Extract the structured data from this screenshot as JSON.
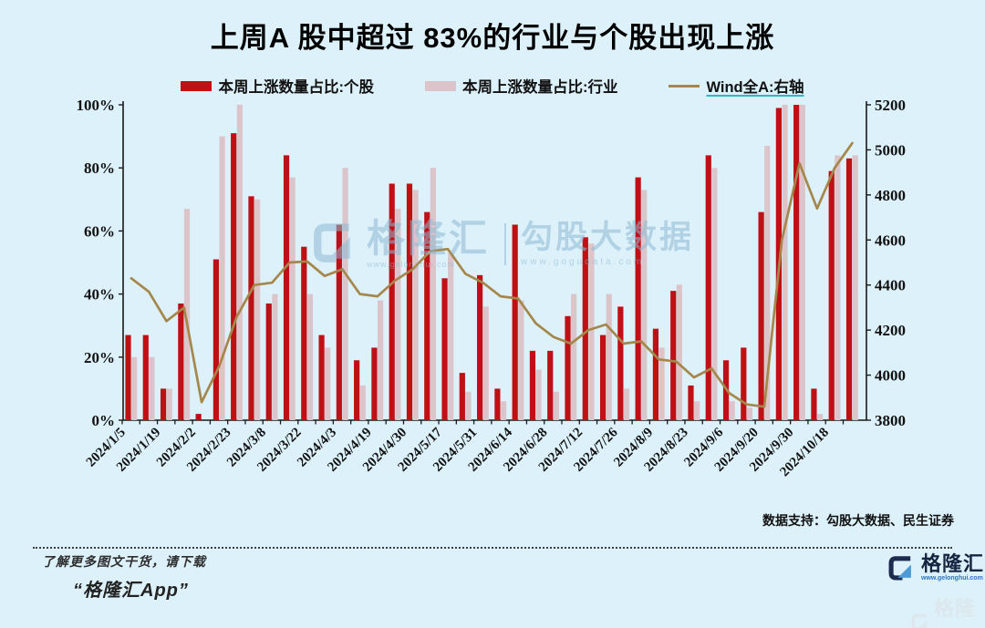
{
  "title": "上周A 股中超过 83%的行业与个股出现上涨",
  "colors": {
    "background": "#dcf1fa",
    "stock_bar": "#bf1016",
    "industry_bar": "#dcc5ca",
    "wind_line": "#a5874b",
    "legend_underline": "#2fb6c9",
    "logo_navy": "#1d2b4f",
    "logo_blue": "#4d9bd5",
    "axis_color": "#1a1a1a"
  },
  "chart_data": {
    "type": "bar+line",
    "x_labels": [
      "2024/1/5",
      "",
      "2024/1/19",
      "",
      "2024/2/2",
      "",
      "2024/2/23",
      "",
      "2024/3/8",
      "",
      "2024/3/22",
      "",
      "2024/4/3",
      "",
      "2024/4/19",
      "",
      "2024/4/30",
      "",
      "2024/5/17",
      "",
      "2024/5/31",
      "",
      "2024/6/14",
      "",
      "2024/6/28",
      "",
      "2024/7/12",
      "",
      "2024/7/26",
      "",
      "2024/8/9",
      "",
      "2024/8/23",
      "",
      "2024/9/6",
      "",
      "2024/9/20",
      "",
      "2024/9/30",
      "",
      "2024/10/18",
      ""
    ],
    "series": [
      {
        "name": "本周上涨数量占比:个股",
        "type": "bar",
        "axis": "left",
        "color": "#bf1016",
        "values": [
          27,
          27,
          10,
          37,
          2,
          51,
          91,
          71,
          37,
          84,
          55,
          27,
          62,
          19,
          23,
          75,
          75,
          66,
          45,
          15,
          46,
          10,
          62,
          22,
          22,
          33,
          58,
          27,
          36,
          77,
          29,
          41,
          11,
          84,
          19,
          23,
          66,
          99,
          100,
          10,
          79,
          83
        ]
      },
      {
        "name": "本周上涨数量占比:行业",
        "type": "bar",
        "axis": "left",
        "color": "#dcc5ca",
        "values": [
          20,
          20,
          10,
          67,
          0,
          90,
          100,
          70,
          40,
          77,
          40,
          23,
          80,
          11,
          38,
          67,
          73,
          80,
          53,
          9,
          36,
          6,
          38,
          16,
          9,
          40,
          56,
          40,
          10,
          73,
          23,
          43,
          6,
          80,
          6,
          4,
          87,
          100,
          100,
          2,
          84,
          84
        ]
      },
      {
        "name": "Wind全A:右轴",
        "type": "line",
        "axis": "right",
        "color": "#a5874b",
        "underline_color": "#2fb6c9",
        "values": [
          4430,
          4370,
          4240,
          4300,
          3880,
          4040,
          4260,
          4400,
          4410,
          4500,
          4505,
          4440,
          4470,
          4360,
          4350,
          4420,
          4470,
          4550,
          4560,
          4450,
          4410,
          4350,
          4340,
          4230,
          4170,
          4140,
          4200,
          4225,
          4140,
          4150,
          4070,
          4060,
          3990,
          4030,
          3920,
          3870,
          3860,
          4600,
          4940,
          4740,
          4920,
          5030
        ]
      }
    ],
    "left_axis": {
      "min": 0,
      "max": 100,
      "ticks": [
        "0%",
        "20%",
        "40%",
        "60%",
        "80%",
        "100%"
      ]
    },
    "right_axis": {
      "min": 3800,
      "max": 5200,
      "ticks": [
        3800,
        4000,
        4200,
        4400,
        4600,
        4800,
        5000,
        5200
      ]
    },
    "grid": "off",
    "legend_position": "top"
  },
  "watermark_center": {
    "brand": "格隆汇",
    "brand_url": "www.gelonghui.com",
    "product": "勾股大数据",
    "product_url": "www.gogudata.com"
  },
  "footer": {
    "data_support": "数据支持：勾股大数据、民生证券",
    "promo_line1": "了解更多图文干货，请下载",
    "promo_line2": "“格隆汇App”"
  },
  "brand_footer": {
    "name": "格隆汇",
    "url": "www.gelonghui.com"
  },
  "watermark_corner": {
    "brand": "格隆汇"
  }
}
